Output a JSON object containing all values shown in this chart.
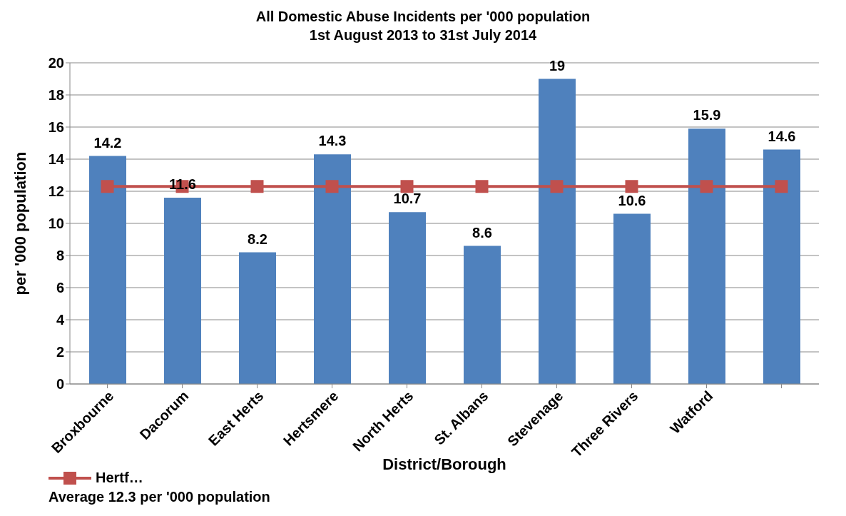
{
  "chart_data": {
    "type": "bar",
    "title": "All Domestic Abuse Incidents per '000 population",
    "subtitle": "1st August 2013 to 31st July 2014",
    "xlabel": "District/Borough",
    "ylabel": "per '000 population",
    "categories": [
      "Broxbourne",
      "Dacorum",
      "East Herts",
      "Hertsmere",
      "North Herts",
      "St. Albans",
      "Stevenage",
      "Three Rivers",
      "Watford",
      null
    ],
    "series": [
      {
        "color": "#4f81bd",
        "values": [
          14.2,
          11.6,
          8.2,
          14.3,
          10.7,
          8.6,
          19,
          10.6,
          15.9,
          14.6
        ],
        "value_labels": [
          "14.2",
          "11.6",
          "8.2",
          "14.3",
          "10.7",
          "8.6",
          "19",
          "10.6",
          "15.9",
          "14.6"
        ]
      },
      {
        "type": "line",
        "name": "Hertf…",
        "color": "#c0504d",
        "marker": "square",
        "values": [
          12.3,
          12.3,
          12.3,
          12.3,
          12.3,
          12.3,
          12.3,
          12.3,
          12.3,
          12.3
        ]
      }
    ],
    "ylim": [
      0,
      20
    ],
    "yticks": [
      0,
      2,
      4,
      6,
      8,
      10,
      12,
      14,
      16,
      18,
      20
    ],
    "grid": "y",
    "legend": "bottom left",
    "annotations": [
      "Average 12.3 per '000 population"
    ]
  }
}
